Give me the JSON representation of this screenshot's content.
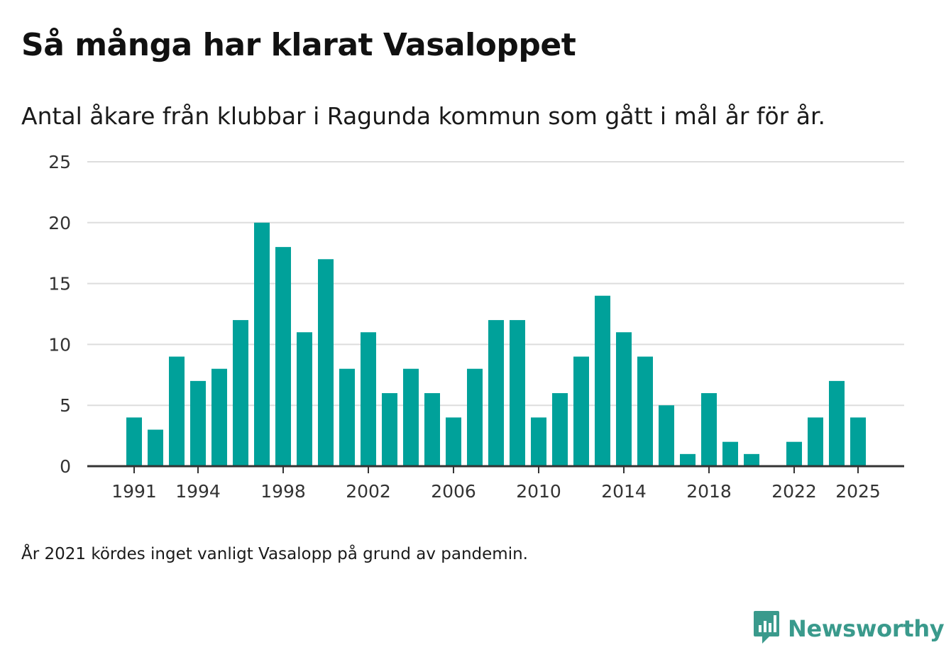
{
  "title": "Så många har klarat Vasaloppet",
  "subtitle": "Antal åkare från klubbar i Ragunda kommun som gått i mål år för år.",
  "footnote": "År 2021 kördes inget vanligt Vasalopp på grund av pandemin.",
  "brand": {
    "name": "Newsworthy",
    "icon": "newsworthy-logo-icon",
    "color": "#3a9a8c"
  },
  "colors": {
    "bar": "#00a19a",
    "grid": "#dddddd",
    "axis": "#333333"
  },
  "chart_data": {
    "type": "bar",
    "title": "Så många har klarat Vasaloppet",
    "xlabel": "",
    "ylabel": "",
    "ylim": [
      0,
      25
    ],
    "yticks": [
      0,
      5,
      10,
      15,
      20,
      25
    ],
    "xticks": [
      1991,
      1994,
      1998,
      2002,
      2006,
      2010,
      2014,
      2018,
      2022,
      2025
    ],
    "grid": true,
    "categories": [
      1991,
      1992,
      1993,
      1994,
      1995,
      1996,
      1997,
      1998,
      1999,
      2000,
      2001,
      2002,
      2003,
      2004,
      2005,
      2006,
      2007,
      2008,
      2009,
      2010,
      2011,
      2012,
      2013,
      2014,
      2015,
      2016,
      2017,
      2018,
      2019,
      2020,
      2021,
      2022,
      2023,
      2024,
      2025
    ],
    "values": [
      4,
      3,
      9,
      7,
      8,
      12,
      20,
      18,
      11,
      17,
      8,
      11,
      6,
      8,
      6,
      4,
      8,
      12,
      12,
      4,
      6,
      9,
      14,
      11,
      9,
      5,
      1,
      6,
      2,
      1,
      null,
      2,
      4,
      7,
      4
    ]
  }
}
